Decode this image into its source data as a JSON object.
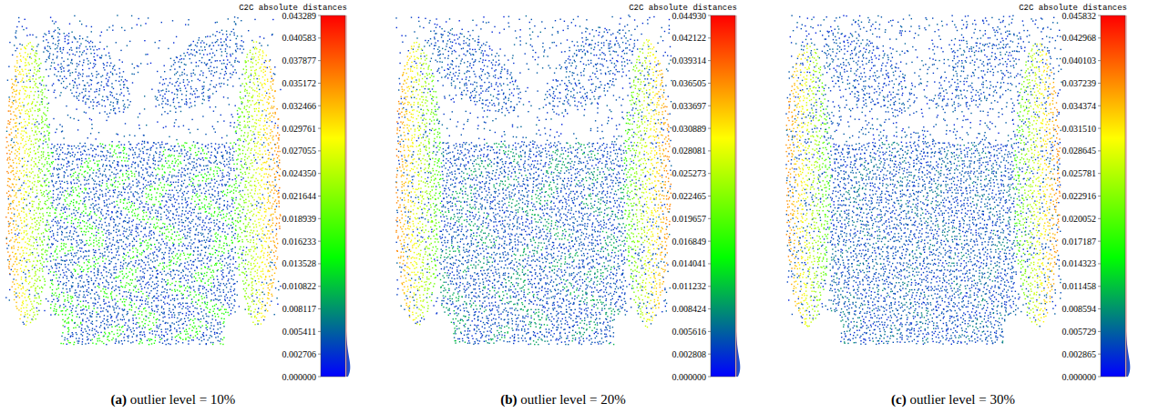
{
  "chart_data": [
    {
      "type": "point_cloud",
      "title": "(a) outlier level = 10%",
      "colorbar_label": "C2C absolute distances",
      "colorbar_range": [
        0,
        0.043289
      ],
      "colorbar_ticks": [
        {
          "value": 0,
          "label": "0.000000"
        },
        0.002706,
        0.005411,
        0.008117,
        0.010822,
        0.013528,
        0.016233,
        0.018939,
        0.021644,
        {
          "value": 0.02435,
          "label": "0.024350"
        },
        0.027055,
        0.029761,
        0.032466,
        0.035172,
        0.037877,
        0.040583,
        0.043289
      ]
    },
    {
      "type": "point_cloud",
      "title": "(b) outlier level = 20%",
      "colorbar_label": "C2C absolute distances",
      "colorbar_range": [
        0,
        0.04493
      ],
      "colorbar_ticks": [
        {
          "value": 0,
          "label": "0.000000"
        },
        0.002808,
        0.005616,
        0.008424,
        0.011232,
        0.014041,
        0.016849,
        0.019657,
        0.022465,
        0.025273,
        0.028081,
        0.030889,
        0.033697,
        0.036505,
        0.039314,
        0.042122,
        {
          "value": 0.04493,
          "label": "0.044930"
        }
      ]
    },
    {
      "type": "point_cloud",
      "title": "(c) outlier level = 30%",
      "colorbar_label": "C2C absolute distances",
      "colorbar_range": [
        0,
        0.045832
      ],
      "colorbar_ticks": [
        {
          "value": 0,
          "label": "0.000000"
        },
        0.002865,
        0.005729,
        0.008594,
        0.011458,
        0.014323,
        0.017187,
        0.020052,
        0.022916,
        0.025781,
        0.028645,
        {
          "value": 0.03151,
          "label": "0.031510"
        },
        0.034374,
        0.037239,
        0.040103,
        0.042968,
        0.045832
      ]
    }
  ]
}
